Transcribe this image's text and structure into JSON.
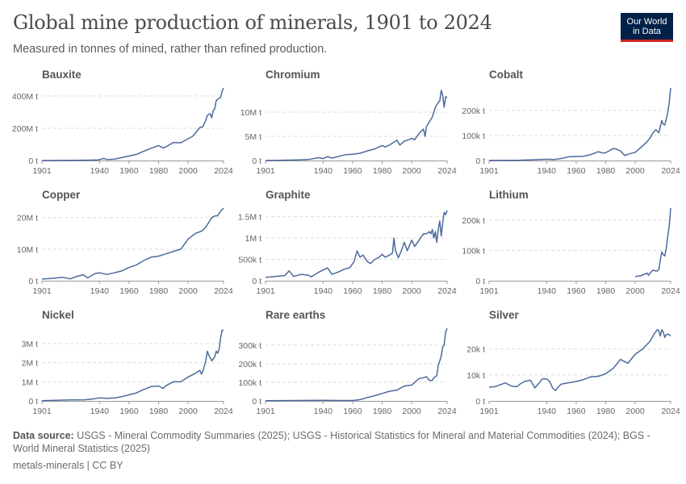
{
  "header": {
    "title": "Global mine production of minerals, 1901 to 2024",
    "subtitle": "Measured in tonnes of mined, rather than refined production.",
    "logo_line1": "Our World",
    "logo_line2": "in Data"
  },
  "footer": {
    "source_label": "Data source:",
    "source_text": "USGS - Mineral Commodity Summaries (2025); USGS - Historical Statistics for Mineral and Material Commodities (2024); BGS - World Mineral Statistics (2025)",
    "meta": "metals-minerals | CC BY"
  },
  "colors": {
    "line": "#4c6a9c",
    "grid": "#dddddd",
    "axis": "#999999",
    "tick_text": "#666666",
    "panel_title": "#555555"
  },
  "chart_data": [
    {
      "type": "line",
      "title": "Bauxite",
      "xlim": [
        1901,
        2024
      ],
      "ylim": [
        0,
        450000000
      ],
      "xticks": [
        1901,
        1940,
        1960,
        1980,
        2000,
        2024
      ],
      "yticks": [
        {
          "v": 0,
          "label": "0 t"
        },
        {
          "v": 200000000,
          "label": "200M t"
        },
        {
          "v": 400000000,
          "label": "400M t"
        }
      ],
      "x": [
        1901,
        1910,
        1920,
        1930,
        1939,
        1941,
        1943,
        1945,
        1950,
        1955,
        1960,
        1965,
        1970,
        1975,
        1980,
        1983,
        1985,
        1990,
        1995,
        2000,
        2003,
        2005,
        2008,
        2010,
        2012,
        2013,
        2015,
        2016,
        2017,
        2018,
        2019,
        2020,
        2021,
        2022,
        2023,
        2024
      ],
      "values": [
        0,
        500000,
        1000000,
        2000000,
        4000000,
        8000000,
        13000000,
        6000000,
        8000000,
        18000000,
        28000000,
        38000000,
        58000000,
        76000000,
        93000000,
        78000000,
        85000000,
        112000000,
        110000000,
        135000000,
        150000000,
        170000000,
        205000000,
        210000000,
        250000000,
        280000000,
        290000000,
        265000000,
        310000000,
        320000000,
        370000000,
        380000000,
        385000000,
        390000000,
        430000000,
        450000000
      ]
    },
    {
      "type": "line",
      "title": "Chromium",
      "xlim": [
        1901,
        2024
      ],
      "ylim": [
        0,
        15000000
      ],
      "xticks": [
        1901,
        1940,
        1960,
        1980,
        2000,
        2024
      ],
      "yticks": [
        {
          "v": 0,
          "label": "0 t"
        },
        {
          "v": 5000000,
          "label": "5M t"
        },
        {
          "v": 10000000,
          "label": "10M t"
        }
      ],
      "x": [
        1901,
        1910,
        1920,
        1930,
        1937,
        1940,
        1943,
        1946,
        1950,
        1955,
        1960,
        1965,
        1970,
        1975,
        1980,
        1982,
        1985,
        1988,
        1990,
        1992,
        1995,
        1998,
        2000,
        2002,
        2005,
        2008,
        2009,
        2010,
        2012,
        2014,
        2016,
        2018,
        2019,
        2020,
        2021,
        2022,
        2023,
        2024
      ],
      "values": [
        20000,
        50000,
        100000,
        200000,
        600000,
        400000,
        800000,
        500000,
        800000,
        1200000,
        1300000,
        1500000,
        2000000,
        2400000,
        3100000,
        2800000,
        3200000,
        3800000,
        4200000,
        3200000,
        4000000,
        4300000,
        4600000,
        4300000,
        5600000,
        6500000,
        5000000,
        7000000,
        8000000,
        9000000,
        11000000,
        12000000,
        12300000,
        14500000,
        13500000,
        11000000,
        13200000,
        13000000
      ]
    },
    {
      "type": "line",
      "title": "Cobalt",
      "xlim": [
        1901,
        2024
      ],
      "ylim": [
        0,
        290000
      ],
      "xticks": [
        1901,
        1940,
        1960,
        1980,
        2000,
        2024
      ],
      "yticks": [
        {
          "v": 0,
          "label": "0 t"
        },
        {
          "v": 100000,
          "label": "100k t"
        },
        {
          "v": 200000,
          "label": "200k t"
        }
      ],
      "x": [
        1901,
        1920,
        1930,
        1940,
        1945,
        1950,
        1955,
        1960,
        1965,
        1970,
        1975,
        1978,
        1980,
        1985,
        1987,
        1990,
        1993,
        1995,
        2000,
        2005,
        2008,
        2010,
        2012,
        2014,
        2016,
        2018,
        2019,
        2020,
        2021,
        2022,
        2023,
        2024
      ],
      "values": [
        200,
        1000,
        3000,
        5000,
        4000,
        8000,
        15000,
        16000,
        17000,
        24000,
        35000,
        30000,
        31000,
        48000,
        46000,
        38000,
        20000,
        25000,
        33000,
        58000,
        75000,
        90000,
        110000,
        123000,
        111000,
        160000,
        144000,
        142000,
        165000,
        190000,
        230000,
        290000
      ]
    },
    {
      "type": "line",
      "title": "Copper",
      "xlim": [
        1901,
        2024
      ],
      "ylim": [
        0,
        23000000
      ],
      "xticks": [
        1901,
        1940,
        1960,
        1980,
        2000,
        2024
      ],
      "yticks": [
        {
          "v": 0,
          "label": "0 t"
        },
        {
          "v": 10000000,
          "label": "10M t"
        },
        {
          "v": 20000000,
          "label": "20M t"
        }
      ],
      "x": [
        1901,
        1910,
        1915,
        1920,
        1925,
        1929,
        1932,
        1937,
        1940,
        1945,
        1950,
        1955,
        1960,
        1965,
        1970,
        1975,
        1980,
        1985,
        1990,
        1995,
        2000,
        2005,
        2008,
        2010,
        2012,
        2014,
        2016,
        2018,
        2020,
        2022,
        2024
      ],
      "values": [
        500000,
        850000,
        1100000,
        600000,
        1400000,
        1900000,
        900000,
        2300000,
        2500000,
        2000000,
        2500000,
        3100000,
        4200000,
        5000000,
        6400000,
        7500000,
        7800000,
        8500000,
        9300000,
        10000000,
        13200000,
        15000000,
        15500000,
        16000000,
        17000000,
        18500000,
        20000000,
        20500000,
        20600000,
        22000000,
        23000000
      ]
    },
    {
      "type": "line",
      "title": "Graphite",
      "xlim": [
        1901,
        2024
      ],
      "ylim": [
        0,
        1700000
      ],
      "xticks": [
        1901,
        1940,
        1960,
        1980,
        2000,
        2024
      ],
      "yticks": [
        {
          "v": 0,
          "label": "0 t"
        },
        {
          "v": 500000,
          "label": "500k t"
        },
        {
          "v": 1000000,
          "label": "1M t"
        },
        {
          "v": 1500000,
          "label": "1.5M t"
        }
      ],
      "x": [
        1901,
        1905,
        1910,
        1914,
        1917,
        1920,
        1925,
        1930,
        1932,
        1937,
        1940,
        1943,
        1946,
        1950,
        1952,
        1955,
        1958,
        1961,
        1963,
        1965,
        1967,
        1970,
        1972,
        1975,
        1978,
        1980,
        1982,
        1985,
        1987,
        1988,
        1989,
        1990,
        1991,
        1993,
        1995,
        1997,
        2000,
        2002,
        2004,
        2006,
        2008,
        2010,
        2012,
        2013,
        2014,
        2015,
        2016,
        2017,
        2018,
        2019,
        2020,
        2021,
        2022,
        2023,
        2024
      ],
      "values": [
        80000,
        90000,
        110000,
        120000,
        230000,
        100000,
        150000,
        130000,
        90000,
        200000,
        250000,
        300000,
        150000,
        200000,
        230000,
        280000,
        300000,
        450000,
        700000,
        550000,
        600000,
        450000,
        400000,
        500000,
        550000,
        620000,
        550000,
        600000,
        650000,
        1000000,
        700000,
        620000,
        540000,
        700000,
        900000,
        700000,
        950000,
        800000,
        900000,
        1000000,
        1100000,
        1100000,
        1150000,
        1100000,
        1200000,
        1000000,
        1150000,
        900000,
        1200000,
        1400000,
        1050000,
        1350000,
        1600000,
        1550000,
        1650000
      ]
    },
    {
      "type": "line",
      "title": "Lithium",
      "xlim": [
        1901,
        2024
      ],
      "ylim": [
        0,
        240000
      ],
      "xticks": [
        1901,
        1940,
        1960,
        1980,
        2000,
        2024
      ],
      "yticks": [
        {
          "v": 0,
          "label": "0 t"
        },
        {
          "v": 100000,
          "label": "100k t"
        },
        {
          "v": 200000,
          "label": "200k t"
        }
      ],
      "x": [
        2000,
        2002,
        2004,
        2006,
        2008,
        2009,
        2010,
        2012,
        2014,
        2015,
        2016,
        2017,
        2018,
        2019,
        2020,
        2021,
        2022,
        2023,
        2024
      ],
      "values": [
        14000,
        15000,
        17000,
        21000,
        25000,
        18000,
        25000,
        35000,
        32000,
        32000,
        38000,
        69000,
        95000,
        86000,
        82000,
        107000,
        146000,
        180000,
        240000
      ]
    },
    {
      "type": "line",
      "title": "Nickel",
      "xlim": [
        1901,
        2024
      ],
      "ylim": [
        0,
        3800000
      ],
      "xticks": [
        1901,
        1940,
        1960,
        1980,
        2000,
        2024
      ],
      "yticks": [
        {
          "v": 0,
          "label": "0 t"
        },
        {
          "v": 1000000,
          "label": "1M t"
        },
        {
          "v": 2000000,
          "label": "2M t"
        },
        {
          "v": 3000000,
          "label": "3M t"
        }
      ],
      "x": [
        1901,
        1910,
        1920,
        1930,
        1937,
        1940,
        1945,
        1950,
        1955,
        1960,
        1965,
        1970,
        1975,
        1980,
        1983,
        1985,
        1990,
        1995,
        2000,
        2005,
        2008,
        2009,
        2010,
        2012,
        2013,
        2014,
        2016,
        2018,
        2019,
        2020,
        2021,
        2022,
        2023,
        2024
      ],
      "values": [
        10000,
        30000,
        50000,
        60000,
        120000,
        160000,
        130000,
        150000,
        220000,
        320000,
        420000,
        600000,
        750000,
        780000,
        650000,
        800000,
        1000000,
        1000000,
        1250000,
        1450000,
        1600000,
        1400000,
        1550000,
        2100000,
        2600000,
        2400000,
        2100000,
        2300000,
        2600000,
        2500000,
        2700000,
        3300000,
        3700000,
        3700000
      ]
    },
    {
      "type": "line",
      "title": "Rare earths",
      "xlim": [
        1901,
        2024
      ],
      "ylim": [
        0,
        390000
      ],
      "xticks": [
        1901,
        1940,
        1960,
        1980,
        2000,
        2024
      ],
      "yticks": [
        {
          "v": 0,
          "label": "0 t"
        },
        {
          "v": 100000,
          "label": "100k t"
        },
        {
          "v": 200000,
          "label": "200k t"
        },
        {
          "v": 300000,
          "label": "300k t"
        }
      ],
      "x": [
        1901,
        1920,
        1940,
        1950,
        1955,
        1960,
        1965,
        1970,
        1975,
        1980,
        1985,
        1990,
        1995,
        2000,
        2005,
        2008,
        2010,
        2012,
        2014,
        2015,
        2016,
        2017,
        2018,
        2019,
        2020,
        2021,
        2022,
        2023,
        2024
      ],
      "values": [
        1000,
        2000,
        3000,
        2000,
        2000,
        2000,
        7000,
        18000,
        28000,
        40000,
        52000,
        58000,
        80000,
        85000,
        120000,
        125000,
        130000,
        110000,
        110000,
        125000,
        130000,
        135000,
        190000,
        215000,
        240000,
        290000,
        300000,
        370000,
        390000
      ]
    },
    {
      "type": "line",
      "title": "Silver",
      "xlim": [
        1901,
        2024
      ],
      "ylim": [
        0,
        28000
      ],
      "xticks": [
        1901,
        1940,
        1960,
        1980,
        2000,
        2024
      ],
      "yticks": [
        {
          "v": 0,
          "label": "0 t"
        },
        {
          "v": 10000,
          "label": "10k t"
        },
        {
          "v": 20000,
          "label": "20k t"
        }
      ],
      "x": [
        1901,
        1905,
        1910,
        1912,
        1915,
        1918,
        1920,
        1922,
        1925,
        1929,
        1932,
        1935,
        1937,
        1940,
        1942,
        1944,
        1946,
        1948,
        1950,
        1955,
        1960,
        1965,
        1970,
        1975,
        1980,
        1985,
        1990,
        1995,
        2000,
        2005,
        2010,
        2013,
        2015,
        2016,
        2017,
        2018,
        2019,
        2020,
        2021,
        2022,
        2023,
        2024
      ],
      "values": [
        5300,
        5500,
        6500,
        7000,
        6000,
        5500,
        5500,
        6500,
        7500,
        8000,
        5000,
        7000,
        8500,
        8500,
        7500,
        5000,
        4000,
        5500,
        6500,
        7000,
        7500,
        8200,
        9300,
        9500,
        10500,
        12500,
        16000,
        14500,
        18000,
        20000,
        23000,
        26000,
        27500,
        27000,
        25000,
        27500,
        26500,
        24500,
        25500,
        25800,
        25500,
        25000
      ]
    }
  ]
}
